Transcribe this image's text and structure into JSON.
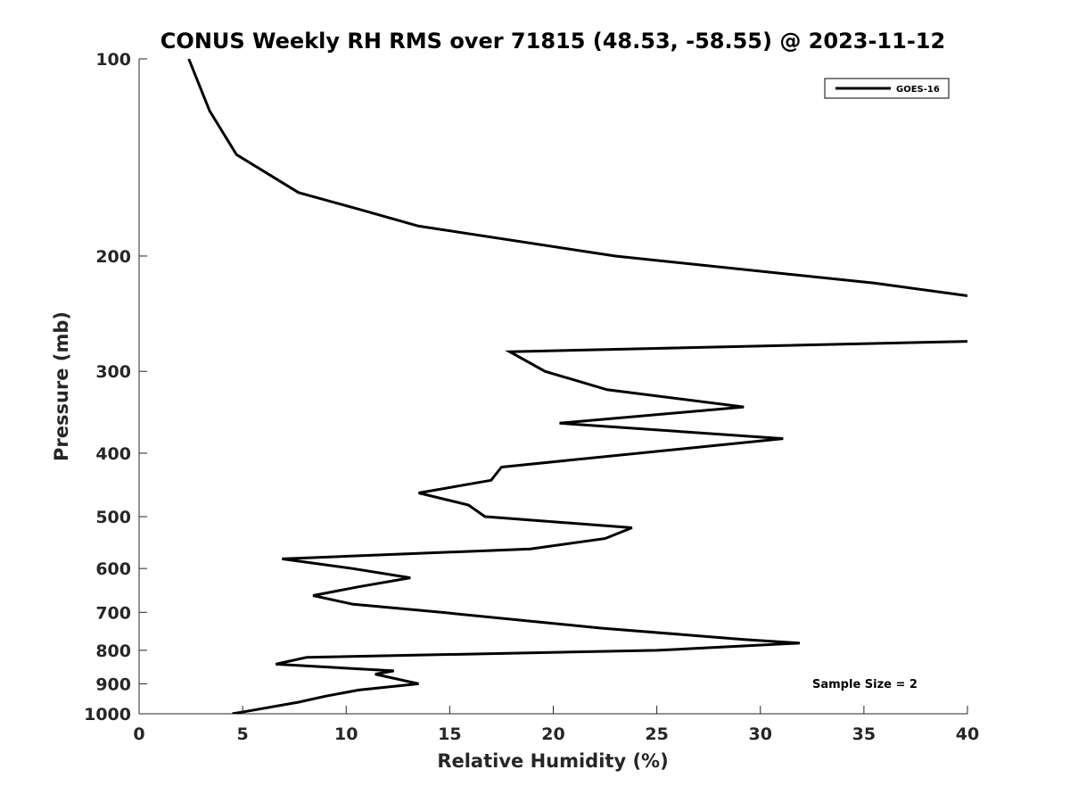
{
  "chart_data": {
    "type": "line",
    "title": "CONUS Weekly RH RMS over 71815 (48.53, -58.55) @ 2023-11-12",
    "xlabel": "Relative Humidity (%)",
    "ylabel": "Pressure (mb)",
    "xlim": [
      0,
      40
    ],
    "ylim": [
      1000,
      100
    ],
    "yscale": "log",
    "y_reversed": true,
    "grid": false,
    "legend_position": "top-right",
    "x_ticks": [
      0,
      5,
      10,
      15,
      20,
      25,
      30,
      35,
      40
    ],
    "y_ticks": [
      100,
      200,
      300,
      400,
      500,
      600,
      700,
      800,
      900,
      1000
    ],
    "series": [
      {
        "name": "GOES-16",
        "color": "#000000",
        "segments": [
          [
            {
              "x": 2.4,
              "y": 100
            },
            {
              "x": 3.4,
              "y": 120
            },
            {
              "x": 4.7,
              "y": 140
            },
            {
              "x": 7.7,
              "y": 160
            },
            {
              "x": 10.7,
              "y": 170
            },
            {
              "x": 13.5,
              "y": 180
            },
            {
              "x": 23,
              "y": 200
            },
            {
              "x": 35.5,
              "y": 220
            },
            {
              "x": 40,
              "y": 230
            }
          ],
          [
            {
              "x": 40,
              "y": 270
            },
            {
              "x": 17.9,
              "y": 280
            },
            {
              "x": 19.6,
              "y": 300
            },
            {
              "x": 22.6,
              "y": 320
            },
            {
              "x": 29.2,
              "y": 340
            },
            {
              "x": 20.3,
              "y": 360
            },
            {
              "x": 31.1,
              "y": 380
            },
            {
              "x": 17.5,
              "y": 420
            },
            {
              "x": 17,
              "y": 440
            },
            {
              "x": 13.5,
              "y": 460
            },
            {
              "x": 15.9,
              "y": 480
            },
            {
              "x": 16.7,
              "y": 500
            },
            {
              "x": 23.8,
              "y": 520
            },
            {
              "x": 22.5,
              "y": 540
            },
            {
              "x": 18.9,
              "y": 560
            },
            {
              "x": 6.9,
              "y": 580
            },
            {
              "x": 10.3,
              "y": 600
            },
            {
              "x": 13.1,
              "y": 620
            },
            {
              "x": 10.6,
              "y": 640
            },
            {
              "x": 8.4,
              "y": 660
            },
            {
              "x": 10.3,
              "y": 680
            },
            {
              "x": 14.6,
              "y": 700
            },
            {
              "x": 22.3,
              "y": 740
            },
            {
              "x": 29.2,
              "y": 770
            },
            {
              "x": 31.9,
              "y": 780
            },
            {
              "x": 25,
              "y": 800
            },
            {
              "x": 8.1,
              "y": 820
            },
            {
              "x": 6.6,
              "y": 840
            },
            {
              "x": 12.3,
              "y": 860
            },
            {
              "x": 11.4,
              "y": 870
            },
            {
              "x": 13.5,
              "y": 900
            },
            {
              "x": 10.6,
              "y": 920
            },
            {
              "x": 9.0,
              "y": 940
            },
            {
              "x": 7.7,
              "y": 960
            },
            {
              "x": 5.3,
              "y": 990
            },
            {
              "x": 4.5,
              "y": 1000
            }
          ]
        ]
      }
    ],
    "annotations": [
      "Sample Size = 2"
    ]
  }
}
